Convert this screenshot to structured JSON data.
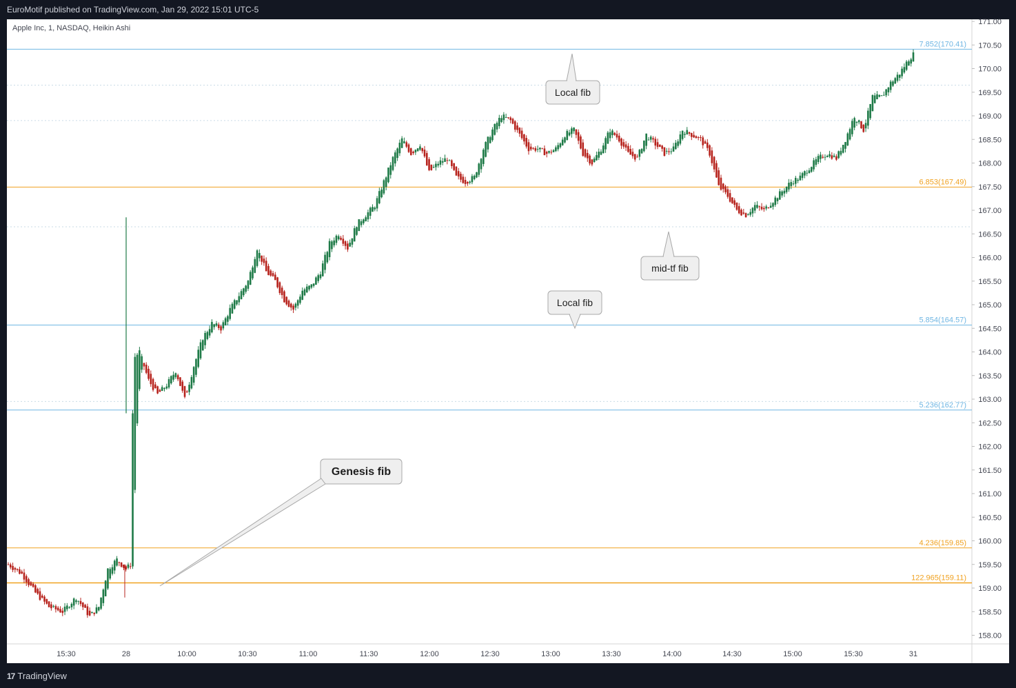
{
  "header": {
    "published": "EuroMotif published on TradingView.com, Jan 29, 2022 15:01 UTC-5"
  },
  "symbol": "Apple Inc, 1, NASDAQ, Heikin Ashi",
  "footer": {
    "brand": "TradingView",
    "logo_text": "17"
  },
  "colors": {
    "up": "#1e7a47",
    "down": "#b7231d",
    "fib_blue": "#6fb6e3",
    "fib_orange": "#f0a11f",
    "grid_dotted": "#c9dbe6",
    "axis_text": "#434651"
  },
  "chart_data": {
    "type": "candlestick",
    "subtype": "Heikin Ashi",
    "ylim": [
      157.9,
      171.3
    ],
    "yticks": [
      "171.00",
      "170.50",
      "170.00",
      "169.50",
      "169.00",
      "168.50",
      "168.00",
      "167.50",
      "167.00",
      "166.50",
      "166.00",
      "165.50",
      "165.00",
      "164.50",
      "164.00",
      "163.50",
      "163.00",
      "162.50",
      "162.00",
      "161.50",
      "161.00",
      "160.50",
      "160.00",
      "159.50",
      "159.00",
      "158.50",
      "158.00"
    ],
    "xticks": [
      "15:30",
      "28",
      "10:00",
      "10:30",
      "11:00",
      "11:30",
      "12:00",
      "12:30",
      "13:00",
      "13:30",
      "14:00",
      "14:30",
      "15:00",
      "15:30",
      "31"
    ],
    "fib_levels": [
      {
        "label": "7.852(170.41)",
        "price": 170.41,
        "color": "blue",
        "style": "solid"
      },
      {
        "label": "6.853(167.49)",
        "price": 167.49,
        "color": "orange",
        "style": "solid"
      },
      {
        "label": "5.854(164.57)",
        "price": 164.57,
        "color": "blue",
        "style": "solid"
      },
      {
        "label": "5.236(162.77)",
        "price": 162.77,
        "color": "blue",
        "style": "solid"
      },
      {
        "label": "4.236(159.85)",
        "price": 159.85,
        "color": "orange",
        "style": "solid"
      },
      {
        "label": "122.965(159.11)",
        "price": 159.11,
        "color": "orange",
        "style": "solid"
      }
    ],
    "dotted_levels": [
      169.65,
      168.9,
      166.65,
      162.95
    ],
    "path_points": [
      [
        0,
        159.5
      ],
      [
        6,
        159.3
      ],
      [
        12,
        158.9
      ],
      [
        18,
        158.6
      ],
      [
        24,
        158.5
      ],
      [
        30,
        158.8
      ],
      [
        36,
        158.4
      ],
      [
        40,
        158.6
      ],
      [
        44,
        159.4
      ],
      [
        48,
        159.6
      ],
      [
        52,
        159.4
      ],
      [
        54,
        159.5
      ],
      [
        55,
        162.7
      ],
      [
        56,
        163.9
      ],
      [
        58,
        164.0
      ],
      [
        62,
        163.4
      ],
      [
        66,
        163.1
      ],
      [
        70,
        163.3
      ],
      [
        74,
        163.6
      ],
      [
        78,
        163.0
      ],
      [
        82,
        163.7
      ],
      [
        86,
        164.3
      ],
      [
        90,
        164.6
      ],
      [
        94,
        164.5
      ],
      [
        98,
        164.9
      ],
      [
        102,
        165.2
      ],
      [
        106,
        165.5
      ],
      [
        110,
        166.2
      ],
      [
        114,
        165.7
      ],
      [
        118,
        165.5
      ],
      [
        122,
        165.1
      ],
      [
        126,
        164.9
      ],
      [
        130,
        165.3
      ],
      [
        134,
        165.4
      ],
      [
        138,
        165.7
      ],
      [
        142,
        166.3
      ],
      [
        146,
        166.5
      ],
      [
        150,
        166.2
      ],
      [
        154,
        166.7
      ],
      [
        158,
        166.9
      ],
      [
        162,
        167.1
      ],
      [
        166,
        167.6
      ],
      [
        170,
        168.1
      ],
      [
        174,
        168.5
      ],
      [
        178,
        168.2
      ],
      [
        182,
        168.4
      ],
      [
        186,
        167.8
      ],
      [
        190,
        168.0
      ],
      [
        194,
        168.1
      ],
      [
        198,
        167.7
      ],
      [
        202,
        167.6
      ],
      [
        206,
        167.7
      ],
      [
        210,
        168.3
      ],
      [
        214,
        168.7
      ],
      [
        218,
        169.0
      ],
      [
        222,
        168.9
      ],
      [
        226,
        168.6
      ],
      [
        230,
        168.3
      ],
      [
        234,
        168.3
      ],
      [
        238,
        168.2
      ],
      [
        242,
        168.3
      ],
      [
        246,
        168.6
      ],
      [
        250,
        168.7
      ],
      [
        254,
        168.2
      ],
      [
        258,
        168.0
      ],
      [
        262,
        168.3
      ],
      [
        266,
        168.7
      ],
      [
        270,
        168.5
      ],
      [
        274,
        168.2
      ],
      [
        278,
        168.1
      ],
      [
        282,
        168.6
      ],
      [
        286,
        168.4
      ],
      [
        290,
        168.2
      ],
      [
        294,
        168.3
      ],
      [
        298,
        168.7
      ],
      [
        302,
        168.6
      ],
      [
        306,
        168.5
      ],
      [
        310,
        168.2
      ],
      [
        314,
        167.5
      ],
      [
        318,
        167.3
      ],
      [
        322,
        167.0
      ],
      [
        326,
        166.9
      ],
      [
        330,
        167.1
      ],
      [
        334,
        167.0
      ],
      [
        338,
        167.2
      ],
      [
        342,
        167.4
      ],
      [
        346,
        167.6
      ],
      [
        350,
        167.7
      ],
      [
        354,
        167.9
      ],
      [
        358,
        168.1
      ],
      [
        362,
        168.2
      ],
      [
        366,
        168.1
      ],
      [
        370,
        168.5
      ],
      [
        374,
        169.0
      ],
      [
        378,
        168.7
      ],
      [
        382,
        169.4
      ],
      [
        386,
        169.4
      ],
      [
        390,
        169.7
      ],
      [
        394,
        169.9
      ],
      [
        398,
        170.2
      ],
      [
        400,
        170.3
      ]
    ],
    "annotations": [
      {
        "text": "Local fib",
        "bold": false
      },
      {
        "text": "mid-tf fib",
        "bold": false
      },
      {
        "text": "Local fib",
        "bold": false
      },
      {
        "text": "Genesis fib",
        "bold": true
      }
    ]
  }
}
